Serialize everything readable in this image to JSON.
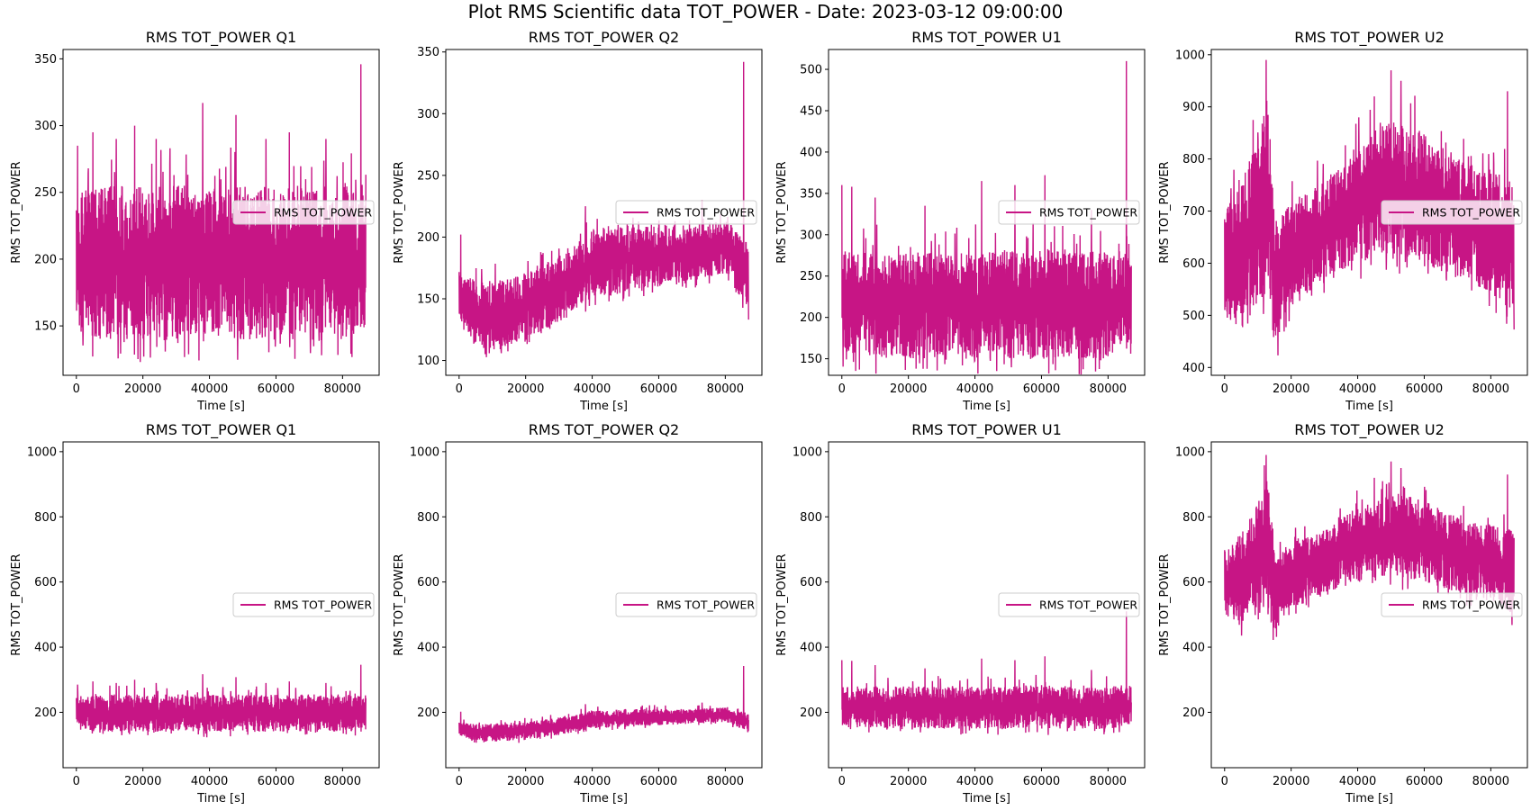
{
  "figure": {
    "suptitle": "Plot RMS Scientific data TOT_POWER - Date: 2023-03-12 09:00:00"
  },
  "colors": {
    "series": "#C71585",
    "axes": "#000000",
    "legend_bg": "#ffffff",
    "legend_border": "#cccccc"
  },
  "chart_data": [
    {
      "type": "line",
      "row": 0,
      "col": 0,
      "title": "RMS TOT_POWER Q1",
      "xlabel": "Time [s]",
      "ylabel": "RMS TOT_POWER",
      "xlim": [
        -4000,
        91000
      ],
      "ylim": [
        113,
        357
      ],
      "xticks": [
        0,
        20000,
        40000,
        60000,
        80000
      ],
      "yticks": [
        150,
        200,
        250,
        300,
        350
      ],
      "legend": {
        "label": "RMS TOT_POWER",
        "loc": "center right"
      },
      "series": [
        {
          "name": "RMS TOT_POWER",
          "xmax": 87000,
          "x": [
            0,
            10000,
            20000,
            30000,
            40000,
            50000,
            60000,
            70000,
            80000,
            87000
          ],
          "low": [
            145,
            140,
            140,
            140,
            140,
            140,
            140,
            140,
            140,
            145
          ],
          "high": [
            250,
            255,
            255,
            255,
            255,
            255,
            255,
            255,
            255,
            255
          ],
          "peaks": [
            [
              400,
              285
            ],
            [
              5000,
              295
            ],
            [
              12000,
              290
            ],
            [
              17500,
              300
            ],
            [
              24000,
              290
            ],
            [
              38000,
              317
            ],
            [
              48000,
              308
            ],
            [
              57000,
              290
            ],
            [
              64000,
              295
            ],
            [
              75000,
              290
            ],
            [
              85500,
              346
            ]
          ]
        }
      ]
    },
    {
      "type": "line",
      "row": 0,
      "col": 1,
      "title": "RMS TOT_POWER Q2",
      "xlabel": "Time [s]",
      "ylabel": "RMS TOT_POWER",
      "xlim": [
        -4000,
        91000
      ],
      "ylim": [
        88,
        352
      ],
      "xticks": [
        0,
        20000,
        40000,
        60000,
        80000
      ],
      "yticks": [
        100,
        150,
        200,
        250,
        300,
        350
      ],
      "legend": {
        "label": "RMS TOT_POWER",
        "loc": "center right"
      },
      "series": [
        {
          "name": "RMS TOT_POWER",
          "xmax": 87000,
          "x": [
            0,
            5000,
            10000,
            20000,
            30000,
            40000,
            50000,
            60000,
            70000,
            80000,
            87000
          ],
          "low": [
            130,
            110,
            110,
            115,
            130,
            150,
            155,
            160,
            165,
            170,
            140
          ],
          "high": [
            170,
            165,
            165,
            170,
            185,
            205,
            210,
            210,
            210,
            215,
            195
          ],
          "peaks": [
            [
              500,
              202
            ],
            [
              38000,
              225
            ],
            [
              73000,
              230
            ],
            [
              85500,
              342
            ]
          ]
        }
      ]
    },
    {
      "type": "line",
      "row": 0,
      "col": 2,
      "title": "RMS TOT_POWER U1",
      "xlabel": "Time [s]",
      "ylabel": "RMS TOT_POWER",
      "xlim": [
        -4000,
        91000
      ],
      "ylim": [
        130,
        524
      ],
      "xticks": [
        0,
        20000,
        40000,
        60000,
        80000
      ],
      "yticks": [
        150,
        200,
        250,
        300,
        350,
        400,
        450,
        500
      ],
      "legend": {
        "label": "RMS TOT_POWER",
        "loc": "center right"
      },
      "series": [
        {
          "name": "RMS TOT_POWER",
          "xmax": 87000,
          "x": [
            0,
            10000,
            20000,
            30000,
            40000,
            50000,
            60000,
            70000,
            80000,
            87000
          ],
          "low": [
            155,
            150,
            150,
            150,
            150,
            150,
            150,
            150,
            150,
            160
          ],
          "high": [
            280,
            280,
            280,
            280,
            280,
            280,
            285,
            280,
            280,
            285
          ],
          "peaks": [
            [
              0,
              360
            ],
            [
              3000,
              358
            ],
            [
              10000,
              345
            ],
            [
              25000,
              335
            ],
            [
              42000,
              365
            ],
            [
              52000,
              360
            ],
            [
              61000,
              372
            ],
            [
              75000,
              330
            ],
            [
              85500,
              510
            ]
          ]
        }
      ]
    },
    {
      "type": "line",
      "row": 0,
      "col": 3,
      "title": "RMS TOT_POWER U2",
      "xlabel": "Time [s]",
      "ylabel": "RMS TOT_POWER",
      "xlim": [
        -4000,
        91000
      ],
      "ylim": [
        385,
        1010
      ],
      "xticks": [
        0,
        20000,
        40000,
        60000,
        80000
      ],
      "yticks": [
        400,
        500,
        600,
        700,
        800,
        900,
        1000
      ],
      "legend": {
        "label": "RMS TOT_POWER",
        "loc": "center right"
      },
      "series": [
        {
          "name": "RMS TOT_POWER",
          "xmax": 87000,
          "x": [
            0,
            5000,
            10000,
            13000,
            15000,
            20000,
            30000,
            40000,
            50000,
            60000,
            70000,
            80000,
            87000
          ],
          "low": [
            500,
            470,
            520,
            540,
            430,
            520,
            560,
            600,
            620,
            600,
            570,
            540,
            500
          ],
          "high": [
            700,
            750,
            850,
            930,
            680,
            720,
            760,
            830,
            880,
            850,
            800,
            780,
            760
          ],
          "peaks": [
            [
              12500,
              990
            ],
            [
              45000,
              920
            ],
            [
              50000,
              970
            ],
            [
              53000,
              950
            ],
            [
              85000,
              930
            ]
          ]
        }
      ]
    },
    {
      "type": "line",
      "row": 1,
      "col": 0,
      "title": "RMS TOT_POWER Q1",
      "xlabel": "Time [s]",
      "ylabel": "RMS TOT_POWER",
      "xlim": [
        -4000,
        91000
      ],
      "ylim": [
        30,
        1030
      ],
      "xticks": [
        0,
        20000,
        40000,
        60000,
        80000
      ],
      "yticks": [
        200,
        400,
        600,
        800,
        1000
      ],
      "legend": {
        "label": "RMS TOT_POWER",
        "loc": "center right"
      },
      "series": [
        {
          "name": "RMS TOT_POWER",
          "xmax": 87000,
          "x": [
            0,
            10000,
            20000,
            30000,
            40000,
            50000,
            60000,
            70000,
            80000,
            87000
          ],
          "low": [
            145,
            140,
            140,
            140,
            140,
            140,
            140,
            140,
            140,
            145
          ],
          "high": [
            250,
            255,
            255,
            255,
            255,
            255,
            255,
            255,
            255,
            255
          ],
          "peaks": [
            [
              400,
              285
            ],
            [
              5000,
              295
            ],
            [
              12000,
              290
            ],
            [
              17500,
              300
            ],
            [
              24000,
              290
            ],
            [
              38000,
              317
            ],
            [
              48000,
              308
            ],
            [
              57000,
              290
            ],
            [
              64000,
              295
            ],
            [
              75000,
              290
            ],
            [
              85500,
              346
            ]
          ]
        }
      ]
    },
    {
      "type": "line",
      "row": 1,
      "col": 1,
      "title": "RMS TOT_POWER Q2",
      "xlabel": "Time [s]",
      "ylabel": "RMS TOT_POWER",
      "xlim": [
        -4000,
        91000
      ],
      "ylim": [
        30,
        1030
      ],
      "xticks": [
        0,
        20000,
        40000,
        60000,
        80000
      ],
      "yticks": [
        200,
        400,
        600,
        800,
        1000
      ],
      "legend": {
        "label": "RMS TOT_POWER",
        "loc": "center right"
      },
      "series": [
        {
          "name": "RMS TOT_POWER",
          "xmax": 87000,
          "x": [
            0,
            5000,
            10000,
            20000,
            30000,
            40000,
            50000,
            60000,
            70000,
            80000,
            87000
          ],
          "low": [
            130,
            110,
            110,
            115,
            130,
            150,
            155,
            160,
            165,
            170,
            140
          ],
          "high": [
            170,
            165,
            165,
            170,
            185,
            205,
            210,
            210,
            210,
            215,
            195
          ],
          "peaks": [
            [
              500,
              202
            ],
            [
              38000,
              225
            ],
            [
              73000,
              230
            ],
            [
              85500,
              342
            ]
          ]
        }
      ]
    },
    {
      "type": "line",
      "row": 1,
      "col": 2,
      "title": "RMS TOT_POWER U1",
      "xlabel": "Time [s]",
      "ylabel": "RMS TOT_POWER",
      "xlim": [
        -4000,
        91000
      ],
      "ylim": [
        30,
        1030
      ],
      "xticks": [
        0,
        20000,
        40000,
        60000,
        80000
      ],
      "yticks": [
        200,
        400,
        600,
        800,
        1000
      ],
      "legend": {
        "label": "RMS TOT_POWER",
        "loc": "center right"
      },
      "series": [
        {
          "name": "RMS TOT_POWER",
          "xmax": 87000,
          "x": [
            0,
            10000,
            20000,
            30000,
            40000,
            50000,
            60000,
            70000,
            80000,
            87000
          ],
          "low": [
            155,
            150,
            150,
            150,
            150,
            150,
            150,
            150,
            150,
            160
          ],
          "high": [
            280,
            280,
            280,
            280,
            280,
            280,
            285,
            280,
            280,
            285
          ],
          "peaks": [
            [
              0,
              360
            ],
            [
              3000,
              358
            ],
            [
              10000,
              345
            ],
            [
              25000,
              335
            ],
            [
              42000,
              365
            ],
            [
              52000,
              360
            ],
            [
              61000,
              372
            ],
            [
              75000,
              330
            ],
            [
              85500,
              510
            ]
          ]
        }
      ]
    },
    {
      "type": "line",
      "row": 1,
      "col": 3,
      "title": "RMS TOT_POWER U2",
      "xlabel": "Time [s]",
      "ylabel": "RMS TOT_POWER",
      "xlim": [
        -4000,
        91000
      ],
      "ylim": [
        30,
        1030
      ],
      "xticks": [
        0,
        20000,
        40000,
        60000,
        80000
      ],
      "yticks": [
        200,
        400,
        600,
        800,
        1000
      ],
      "legend": {
        "label": "RMS TOT_POWER",
        "loc": "center right"
      },
      "series": [
        {
          "name": "RMS TOT_POWER",
          "xmax": 87000,
          "x": [
            0,
            5000,
            10000,
            13000,
            15000,
            20000,
            30000,
            40000,
            50000,
            60000,
            70000,
            80000,
            87000
          ],
          "low": [
            500,
            470,
            520,
            540,
            430,
            520,
            560,
            600,
            620,
            600,
            570,
            540,
            500
          ],
          "high": [
            700,
            750,
            850,
            930,
            680,
            720,
            760,
            830,
            880,
            850,
            800,
            780,
            760
          ],
          "peaks": [
            [
              12500,
              990
            ],
            [
              45000,
              920
            ],
            [
              50000,
              970
            ],
            [
              53000,
              950
            ],
            [
              85000,
              930
            ]
          ]
        }
      ]
    }
  ]
}
